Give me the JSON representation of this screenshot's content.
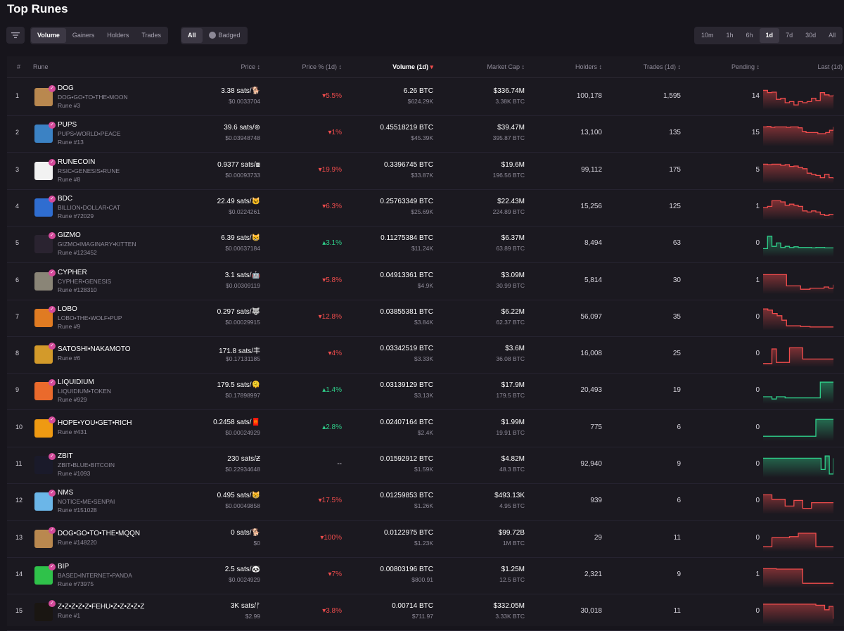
{
  "page": {
    "title": "Top Runes"
  },
  "tabs": [
    "Volume",
    "Gainers",
    "Holders",
    "Trades"
  ],
  "kinds": [
    "All",
    "Badged"
  ],
  "timeframes": [
    "10m",
    "1h",
    "6h",
    "1d",
    "7d",
    "30d",
    "All"
  ],
  "columns": {
    "rank": "#",
    "rune": "Rune",
    "price": "Price",
    "price_pct": "Price % (1d)",
    "volume": "Volume (1d)",
    "market_cap": "Market Cap",
    "holders": "Holders",
    "trades": "Trades (1d)",
    "pending": "Pending",
    "last": "Last (1d)"
  },
  "colors": {
    "down": "#f04c4c",
    "up": "#2fcf8a",
    "badge": "#d44a9a"
  },
  "rows": [
    {
      "rank": "1",
      "name": "DOG",
      "spaced": "DOG•GO•TO•THE•MOON",
      "num": "Rune #3",
      "price": "3.38 sats/🐕",
      "usd": "$0.0033704",
      "pct": "▾5.5%",
      "dir": "down",
      "vol": "6.26 BTC",
      "vol_usd": "$624.29K",
      "mcap": "$336.74M",
      "mcap_btc": "3.38K BTC",
      "holders": "100,178",
      "trades": "1,595",
      "pending": "14",
      "icon": "dog-avatar-icon",
      "bg": "#b9884f",
      "trend": [
        0.8,
        0.7,
        0.72,
        0.4,
        0.45,
        0.25,
        0.3,
        0.15,
        0.3,
        0.25,
        0.3,
        0.45,
        0.35,
        0.7,
        0.6,
        0.55,
        0.6
      ]
    },
    {
      "rank": "2",
      "name": "PUPS",
      "spaced": "PUPS•WORLD•PEACE",
      "num": "Rune #13",
      "price": "39.6 sats/⊚",
      "usd": "$0.03948748",
      "pct": "▾1%",
      "dir": "down",
      "vol": "0.45518219 BTC",
      "vol_usd": "$45.39K",
      "mcap": "$39.47M",
      "mcap_btc": "395.87 BTC",
      "holders": "13,100",
      "trades": "135",
      "pending": "15",
      "icon": "pups-avatar-icon",
      "bg": "#3b82c4",
      "trend": [
        0.8,
        0.82,
        0.78,
        0.8,
        0.8,
        0.8,
        0.78,
        0.8,
        0.8,
        0.76,
        0.6,
        0.55,
        0.55,
        0.55,
        0.5,
        0.5,
        0.55,
        0.65,
        0.8
      ]
    },
    {
      "rank": "3",
      "name": "RUNECOIN",
      "spaced": "RSIC•GENESIS•RUNE",
      "num": "Rune #8",
      "price": "0.9377 sats/⧇",
      "usd": "$0.00093733",
      "pct": "▾19.9%",
      "dir": "down",
      "vol": "0.3396745 BTC",
      "vol_usd": "$33.87K",
      "mcap": "$19.6M",
      "mcap_btc": "196.56 BTC",
      "holders": "99,112",
      "trades": "175",
      "pending": "5",
      "icon": "runecoin-avatar-icon",
      "bg": "#f2f2f2",
      "trend": [
        0.8,
        0.78,
        0.8,
        0.8,
        0.75,
        0.78,
        0.7,
        0.72,
        0.65,
        0.6,
        0.4,
        0.35,
        0.3,
        0.2,
        0.35,
        0.2,
        0.15
      ]
    },
    {
      "rank": "4",
      "name": "BDC",
      "spaced": "BILLION•DOLLAR•CAT",
      "num": "Rune #72029",
      "price": "22.49 sats/🐱",
      "usd": "$0.0224261",
      "pct": "▾6.3%",
      "dir": "down",
      "vol": "0.25763349 BTC",
      "vol_usd": "$25.69K",
      "mcap": "$22.43M",
      "mcap_btc": "224.89 BTC",
      "holders": "15,256",
      "trades": "125",
      "pending": "1",
      "icon": "bdc-avatar-icon",
      "bg": "#2f6dd0",
      "trend": [
        0.5,
        0.55,
        0.8,
        0.8,
        0.75,
        0.6,
        0.65,
        0.6,
        0.55,
        0.35,
        0.3,
        0.35,
        0.3,
        0.2,
        0.15,
        0.2,
        0.2
      ]
    },
    {
      "rank": "5",
      "name": "GIZMO",
      "spaced": "GIZMO•IMAGINARY•KITTEN",
      "num": "Rune #123452",
      "price": "6.39 sats/😸",
      "usd": "$0.00637184",
      "pct": "▴3.1%",
      "dir": "up",
      "vol": "0.11275384 BTC",
      "vol_usd": "$11.24K",
      "mcap": "$6.37M",
      "mcap_btc": "63.89 BTC",
      "holders": "8,494",
      "trades": "63",
      "pending": "0",
      "icon": "gizmo-avatar-icon",
      "bg": "#2a2330",
      "trend": [
        0.3,
        0.85,
        0.4,
        0.55,
        0.35,
        0.4,
        0.35,
        0.38,
        0.35,
        0.35,
        0.35,
        0.33,
        0.35,
        0.35,
        0.33,
        0.33,
        0.32
      ]
    },
    {
      "rank": "6",
      "name": "CYPHER",
      "spaced": "CYPHER•GENESIS",
      "num": "Rune #128310",
      "price": "3.1 sats/🤖",
      "usd": "$0.00309119",
      "pct": "▾5.8%",
      "dir": "down",
      "vol": "0.04913361 BTC",
      "vol_usd": "$4.9K",
      "mcap": "$3.09M",
      "mcap_btc": "30.99 BTC",
      "holders": "5,814",
      "trades": "30",
      "pending": "1",
      "icon": "cypher-avatar-icon",
      "bg": "#8a8577",
      "trend": [
        0.8,
        0.8,
        0.8,
        0.8,
        0.8,
        0.3,
        0.3,
        0.3,
        0.15,
        0.15,
        0.2,
        0.2,
        0.2,
        0.25,
        0.2,
        0.35
      ]
    },
    {
      "rank": "7",
      "name": "LOBO",
      "spaced": "LOBO•THE•WOLF•PUP",
      "num": "Rune #9",
      "price": "0.297 sats/🐺",
      "usd": "$0.00029915",
      "pct": "▾12.8%",
      "dir": "down",
      "vol": "0.03855381 BTC",
      "vol_usd": "$3.84K",
      "mcap": "$6.22M",
      "mcap_btc": "62.37 BTC",
      "holders": "56,097",
      "trades": "35",
      "pending": "0",
      "icon": "lobo-avatar-icon",
      "bg": "#e07b22",
      "trend": [
        0.9,
        0.85,
        0.7,
        0.6,
        0.4,
        0.15,
        0.15,
        0.15,
        0.12,
        0.12,
        0.1,
        0.1,
        0.1,
        0.1,
        0.1,
        0.1
      ]
    },
    {
      "rank": "8",
      "name": "SATOSHI•NAKAMOTO",
      "spaced": "",
      "num": "Rune #6",
      "price": "171.8 sats/丰",
      "usd": "$0.17131185",
      "pct": "▾4%",
      "dir": "down",
      "vol": "0.03342519 BTC",
      "vol_usd": "$3.33K",
      "mcap": "$3.6M",
      "mcap_btc": "36.08 BTC",
      "holders": "16,008",
      "trades": "25",
      "pending": "0",
      "icon": "satoshi-avatar-icon",
      "bg": "#d39a2a",
      "trend": [
        0.1,
        0.1,
        0.75,
        0.15,
        0.15,
        0.15,
        0.8,
        0.8,
        0.8,
        0.3,
        0.3,
        0.3,
        0.3,
        0.3,
        0.3,
        0.3,
        0.3
      ]
    },
    {
      "rank": "9",
      "name": "LIQUIDIUM",
      "spaced": "LIQUIDIUM•TOKEN",
      "num": "Rune #929",
      "price": "179.5 sats/🫠",
      "usd": "$0.17898997",
      "pct": "▴1.4%",
      "dir": "up",
      "vol": "0.03139129 BTC",
      "vol_usd": "$3.13K",
      "mcap": "$17.9M",
      "mcap_btc": "179.5 BTC",
      "holders": "20,493",
      "trades": "19",
      "pending": "0",
      "icon": "liquidium-avatar-icon",
      "bg": "#ea6a2c",
      "trend": [
        0.25,
        0.25,
        0.15,
        0.25,
        0.25,
        0.2,
        0.2,
        0.2,
        0.2,
        0.2,
        0.2,
        0.2,
        0.2,
        0.9,
        0.9,
        0.9,
        0.9
      ]
    },
    {
      "rank": "10",
      "name": "HOPE•YOU•GET•RICH",
      "spaced": "",
      "num": "Rune #431",
      "price": "0.2458 sats/🧧",
      "usd": "$0.00024929",
      "pct": "▴2.8%",
      "dir": "up",
      "vol": "0.02407164 BTC",
      "vol_usd": "$2.4K",
      "mcap": "$1.99M",
      "mcap_btc": "19.91 BTC",
      "holders": "775",
      "trades": "6",
      "pending": "0",
      "icon": "hope-avatar-icon",
      "bg": "#ef9a12",
      "trend": [
        0.15,
        0.15,
        0.15,
        0.15,
        0.15,
        0.15,
        0.15,
        0.15,
        0.15,
        0.15,
        0.15,
        0.15,
        0.9,
        0.9,
        0.9,
        0.9,
        0.9
      ]
    },
    {
      "rank": "11",
      "name": "ZBIT",
      "spaced": "ZBIT•BLUE•BITCOIN",
      "num": "Rune #1093",
      "price": "230 sats/Ƶ",
      "usd": "$0.22934648",
      "pct": "--",
      "dir": "none",
      "vol": "0.01592912 BTC",
      "vol_usd": "$1.59K",
      "mcap": "$4.82M",
      "mcap_btc": "48.3 BTC",
      "holders": "92,940",
      "trades": "9",
      "pending": "0",
      "icon": "zbit-avatar-icon",
      "bg": "#1a1a2a",
      "trend": [
        0.8,
        0.8,
        0.8,
        0.8,
        0.8,
        0.8,
        0.8,
        0.8,
        0.8,
        0.8,
        0.8,
        0.8,
        0.8,
        0.8,
        0.3,
        0.9,
        0.1,
        0.8
      ]
    },
    {
      "rank": "12",
      "name": "NMS",
      "spaced": "NOTICE•ME•SENPAI",
      "num": "Rune #151028",
      "price": "0.495 sats/😸",
      "usd": "$0.00049858",
      "pct": "▾17.5%",
      "dir": "down",
      "vol": "0.01259853 BTC",
      "vol_usd": "$1.26K",
      "mcap": "$493.13K",
      "mcap_btc": "4.95 BTC",
      "holders": "939",
      "trades": "6",
      "pending": "0",
      "icon": "nms-avatar-icon",
      "bg": "#6bb6e8",
      "trend": [
        0.8,
        0.8,
        0.6,
        0.6,
        0.6,
        0.3,
        0.3,
        0.55,
        0.55,
        0.2,
        0.2,
        0.45,
        0.45,
        0.45,
        0.45,
        0.45,
        0.45
      ]
    },
    {
      "rank": "13",
      "name": "DOG•GO•TO•THE•MQQN",
      "spaced": "",
      "num": "Rune #148220",
      "price": "0 sats/🐕",
      "usd": "$0",
      "pct": "▾100%",
      "dir": "down",
      "vol": "0.0122975 BTC",
      "vol_usd": "$1.23K",
      "mcap": "$99.72B",
      "mcap_btc": "1M BTC",
      "holders": "29",
      "trades": "11",
      "pending": "0",
      "icon": "dog-mqqn-avatar-icon",
      "bg": "#b9884f",
      "trend": [
        0.15,
        0.15,
        0.55,
        0.55,
        0.55,
        0.55,
        0.6,
        0.6,
        0.75,
        0.75,
        0.75,
        0.75,
        0.15,
        0.15,
        0.15,
        0.15,
        0.15
      ]
    },
    {
      "rank": "14",
      "name": "BIP",
      "spaced": "BASED•INTERNET•PANDA",
      "num": "Rune #73975",
      "price": "2.5 sats/🐼",
      "usd": "$0.0024929",
      "pct": "▾7%",
      "dir": "down",
      "vol": "0.00803196 BTC",
      "vol_usd": "$800.91",
      "mcap": "$1.25M",
      "mcap_btc": "12.5 BTC",
      "holders": "2,321",
      "trades": "9",
      "pending": "1",
      "icon": "bip-avatar-icon",
      "bg": "#2fc24a",
      "trend": [
        0.8,
        0.8,
        0.8,
        0.78,
        0.78,
        0.78,
        0.78,
        0.78,
        0.78,
        0.15,
        0.15,
        0.15,
        0.15,
        0.15,
        0.15,
        0.15,
        0.15
      ]
    },
    {
      "rank": "15",
      "name": "Z•Z•Z•Z•Z•FEHU•Z•Z•Z•Z•Z",
      "spaced": "",
      "num": "Rune #1",
      "price": "3K sats/ᚠ",
      "usd": "$2.99",
      "pct": "▾3.8%",
      "dir": "down",
      "vol": "0.00714 BTC",
      "vol_usd": "$711.97",
      "mcap": "$332.05M",
      "mcap_btc": "3.33K BTC",
      "holders": "30,018",
      "trades": "11",
      "pending": "0",
      "icon": "fehu-avatar-icon",
      "bg": "#1a1612",
      "trend": [
        0.85,
        0.85,
        0.85,
        0.85,
        0.85,
        0.85,
        0.85,
        0.85,
        0.85,
        0.85,
        0.85,
        0.85,
        0.8,
        0.8,
        0.6,
        0.75,
        0.2
      ]
    }
  ]
}
